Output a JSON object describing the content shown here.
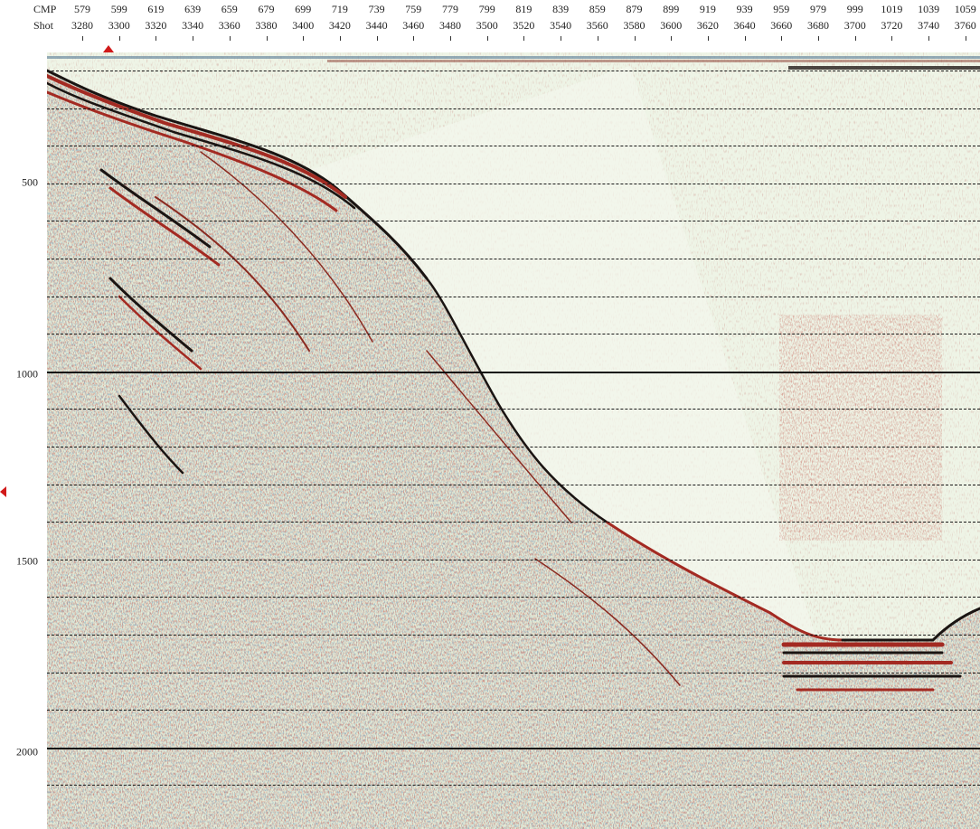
{
  "header": {
    "cmp_label": "CMP",
    "shot_label": "Shot",
    "cmp_values": [
      "579",
      "599",
      "619",
      "639",
      "659",
      "679",
      "699",
      "719",
      "739",
      "759",
      "779",
      "799",
      "819",
      "839",
      "859",
      "879",
      "899",
      "919",
      "939",
      "959",
      "979",
      "999",
      "1019",
      "1039",
      "1059"
    ],
    "shot_values": [
      "3280",
      "3300",
      "3320",
      "3340",
      "3360",
      "3380",
      "3400",
      "3420",
      "3440",
      "3460",
      "3480",
      "3500",
      "3520",
      "3540",
      "3560",
      "3580",
      "3600",
      "3620",
      "3640",
      "3660",
      "3680",
      "3700",
      "3720",
      "3740",
      "3760"
    ]
  },
  "time_axis": {
    "labels": [
      "500",
      "1000",
      "1500",
      "2000"
    ]
  },
  "colors": {
    "positive_trace": "#a32a22",
    "negative_trace": "#3f6f8a",
    "background": "#e8efdd",
    "marker": "#d11a1a"
  }
}
